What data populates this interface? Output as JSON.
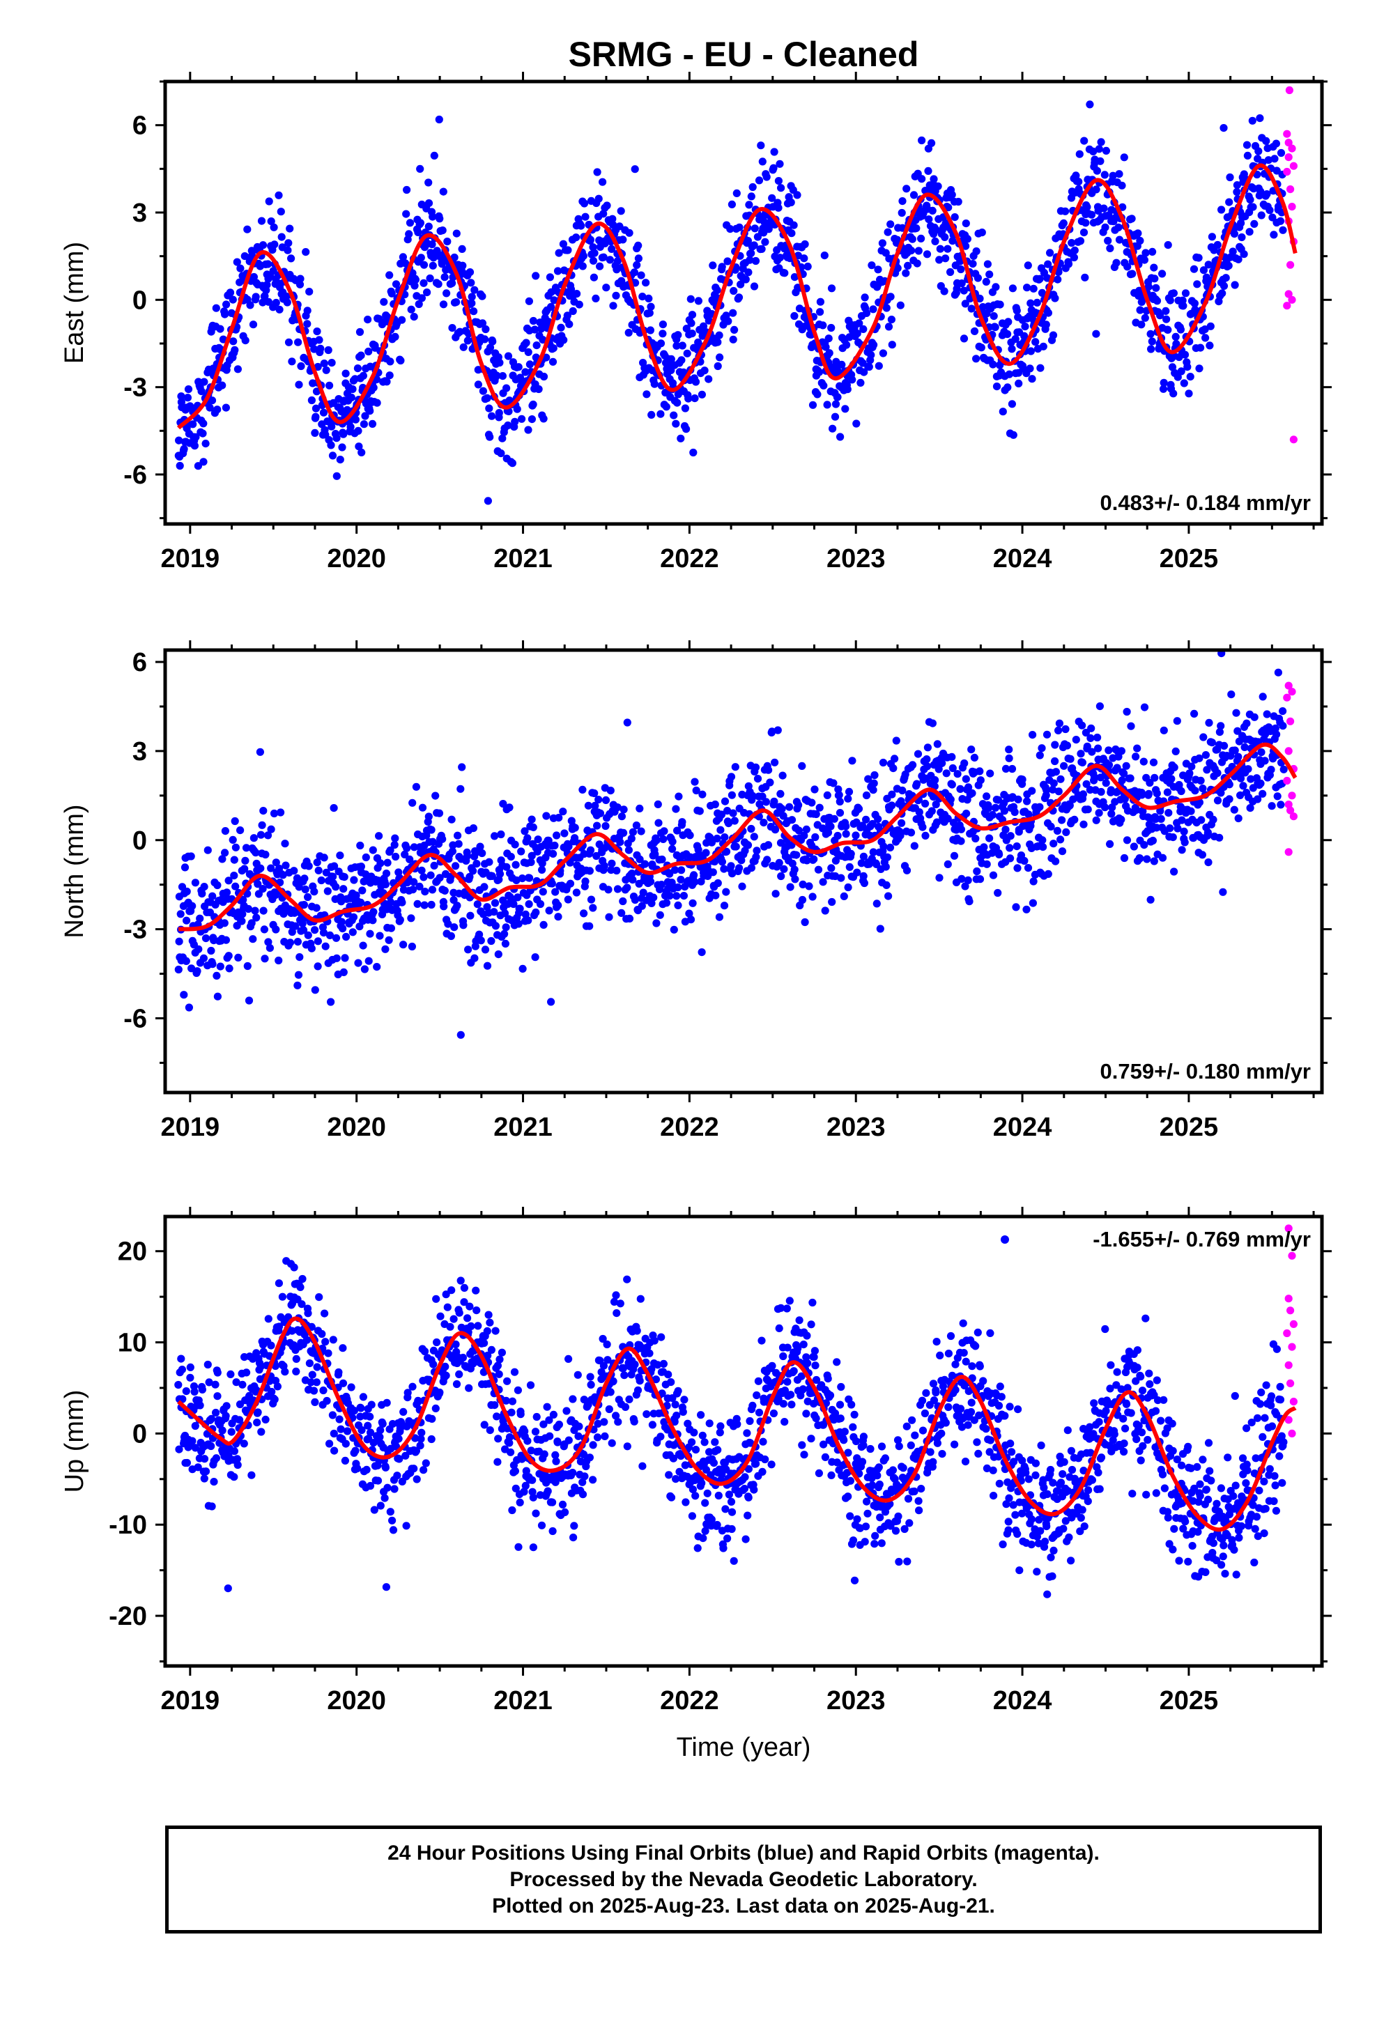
{
  "title": "SRMG  - EU - Cleaned",
  "xlabel": "Time (year)",
  "colors": {
    "final": "#0000ff",
    "rapid": "#ff00ff",
    "fit": "#ff0000",
    "axis": "#000000"
  },
  "footer": {
    "line1": "24 Hour Positions Using Final Orbits (blue) and Rapid Orbits (magenta).",
    "line2": "Processed by the Nevada Geodetic Laboratory.",
    "line3": "Plotted on 2025-Aug-23. Last data on 2025-Aug-21."
  },
  "chart_data": [
    {
      "type": "scatter",
      "component": "east",
      "ylabel": "East (mm)",
      "xlim": [
        2018.85,
        2025.8
      ],
      "ylim": [
        -7.7,
        7.5
      ],
      "xticks": [
        2019,
        2020,
        2021,
        2022,
        2023,
        2024,
        2025
      ],
      "xtick_labels": [
        "2019",
        "2020",
        "2021",
        "2022",
        "2023",
        "2024",
        "2025"
      ],
      "yticks": [
        -6,
        -3,
        0,
        3,
        6
      ],
      "ytick_labels": [
        "-6",
        "-3",
        "0",
        "3",
        "6"
      ],
      "rate_label": "0.483+/- 0.184 mm/yr",
      "legend_marker": false,
      "data_start": 2018.93,
      "data_end": 2025.57,
      "rapid_end": 2025.64,
      "fit": {
        "offset": -1.3,
        "rate": 0.483,
        "annual_amp": 2.9,
        "annual_peak": 0.45,
        "noise": 1.0,
        "seed": 11
      },
      "fit_points": [
        {
          "x": 2018.93,
          "y": -4.4
        },
        {
          "x": 2019.1,
          "y": -3.4
        },
        {
          "x": 2019.25,
          "y": -1.0
        },
        {
          "x": 2019.42,
          "y": 1.6
        },
        {
          "x": 2019.6,
          "y": 0.3
        },
        {
          "x": 2019.75,
          "y": -2.5
        },
        {
          "x": 2019.9,
          "y": -4.2
        },
        {
          "x": 2020.1,
          "y": -2.6
        },
        {
          "x": 2020.25,
          "y": 0.0
        },
        {
          "x": 2020.42,
          "y": 2.2
        },
        {
          "x": 2020.6,
          "y": 0.9
        },
        {
          "x": 2020.75,
          "y": -2.2
        },
        {
          "x": 2020.9,
          "y": -3.7
        },
        {
          "x": 2021.1,
          "y": -2.1
        },
        {
          "x": 2021.25,
          "y": 0.5
        },
        {
          "x": 2021.44,
          "y": 2.6
        },
        {
          "x": 2021.6,
          "y": 1.4
        },
        {
          "x": 2021.75,
          "y": -1.5
        },
        {
          "x": 2021.9,
          "y": -3.1
        },
        {
          "x": 2022.1,
          "y": -1.4
        },
        {
          "x": 2022.25,
          "y": 1.1
        },
        {
          "x": 2022.42,
          "y": 3.1
        },
        {
          "x": 2022.6,
          "y": 1.9
        },
        {
          "x": 2022.75,
          "y": -1.1
        },
        {
          "x": 2022.88,
          "y": -2.7
        },
        {
          "x": 2023.1,
          "y": -1.0
        },
        {
          "x": 2023.25,
          "y": 1.6
        },
        {
          "x": 2023.42,
          "y": 3.6
        },
        {
          "x": 2023.6,
          "y": 2.3
        },
        {
          "x": 2023.75,
          "y": -0.6
        },
        {
          "x": 2023.92,
          "y": -2.2
        },
        {
          "x": 2024.1,
          "y": -0.6
        },
        {
          "x": 2024.25,
          "y": 2.0
        },
        {
          "x": 2024.44,
          "y": 4.1
        },
        {
          "x": 2024.6,
          "y": 2.8
        },
        {
          "x": 2024.75,
          "y": 0.0
        },
        {
          "x": 2024.9,
          "y": -1.8
        },
        {
          "x": 2025.1,
          "y": -0.1
        },
        {
          "x": 2025.25,
          "y": 2.5
        },
        {
          "x": 2025.42,
          "y": 4.6
        },
        {
          "x": 2025.56,
          "y": 3.4
        },
        {
          "x": 2025.64,
          "y": 1.6
        }
      ],
      "rapid_points": [
        {
          "x": 2025.605,
          "y": 7.2
        },
        {
          "x": 2025.59,
          "y": 5.7
        },
        {
          "x": 2025.6,
          "y": 5.4
        },
        {
          "x": 2025.62,
          "y": 5.2
        },
        {
          "x": 2025.6,
          "y": 4.9
        },
        {
          "x": 2025.63,
          "y": 4.6
        },
        {
          "x": 2025.59,
          "y": 4.4
        },
        {
          "x": 2025.61,
          "y": 3.8
        },
        {
          "x": 2025.62,
          "y": 3.2
        },
        {
          "x": 2025.6,
          "y": 2.7
        },
        {
          "x": 2025.63,
          "y": 2.0
        },
        {
          "x": 2025.61,
          "y": 1.2
        },
        {
          "x": 2025.6,
          "y": 0.2
        },
        {
          "x": 2025.62,
          "y": 0.0
        },
        {
          "x": 2025.59,
          "y": -0.2
        },
        {
          "x": 2025.63,
          "y": -4.8
        }
      ]
    },
    {
      "type": "scatter",
      "component": "north",
      "ylabel": "North (mm)",
      "xlim": [
        2018.85,
        2025.8
      ],
      "ylim": [
        -8.5,
        6.4
      ],
      "xticks": [
        2019,
        2020,
        2021,
        2022,
        2023,
        2024,
        2025
      ],
      "xtick_labels": [
        "2019",
        "2020",
        "2021",
        "2022",
        "2023",
        "2024",
        "2025"
      ],
      "yticks": [
        -6,
        -3,
        0,
        3,
        6
      ],
      "ytick_labels": [
        "-6",
        "-3",
        "0",
        "3",
        "6"
      ],
      "rate_label": "0.759+/- 0.180 mm/yr",
      "legend_marker": false,
      "data_start": 2018.93,
      "data_end": 2025.57,
      "rapid_end": 2025.64,
      "fit": {
        "offset": -2.0,
        "rate": 0.759,
        "annual_amp": 0.9,
        "annual_peak": 0.45,
        "noise": 1.05,
        "seed": 23
      },
      "fit_points": [
        {
          "x": 2018.93,
          "y": -3.0
        },
        {
          "x": 2019.1,
          "y": -2.9
        },
        {
          "x": 2019.25,
          "y": -2.2
        },
        {
          "x": 2019.42,
          "y": -1.2
        },
        {
          "x": 2019.6,
          "y": -2.0
        },
        {
          "x": 2019.75,
          "y": -2.7
        },
        {
          "x": 2019.92,
          "y": -2.4
        },
        {
          "x": 2020.1,
          "y": -2.2
        },
        {
          "x": 2020.25,
          "y": -1.5
        },
        {
          "x": 2020.44,
          "y": -0.5
        },
        {
          "x": 2020.6,
          "y": -1.2
        },
        {
          "x": 2020.75,
          "y": -2.0
        },
        {
          "x": 2020.92,
          "y": -1.6
        },
        {
          "x": 2021.1,
          "y": -1.5
        },
        {
          "x": 2021.25,
          "y": -0.7
        },
        {
          "x": 2021.44,
          "y": 0.2
        },
        {
          "x": 2021.6,
          "y": -0.5
        },
        {
          "x": 2021.75,
          "y": -1.1
        },
        {
          "x": 2021.92,
          "y": -0.8
        },
        {
          "x": 2022.1,
          "y": -0.7
        },
        {
          "x": 2022.25,
          "y": 0.0
        },
        {
          "x": 2022.44,
          "y": 1.0
        },
        {
          "x": 2022.6,
          "y": 0.1
        },
        {
          "x": 2022.75,
          "y": -0.4
        },
        {
          "x": 2022.92,
          "y": -0.1
        },
        {
          "x": 2023.1,
          "y": 0.0
        },
        {
          "x": 2023.25,
          "y": 0.8
        },
        {
          "x": 2023.44,
          "y": 1.7
        },
        {
          "x": 2023.6,
          "y": 0.9
        },
        {
          "x": 2023.75,
          "y": 0.4
        },
        {
          "x": 2023.92,
          "y": 0.6
        },
        {
          "x": 2024.1,
          "y": 0.8
        },
        {
          "x": 2024.25,
          "y": 1.5
        },
        {
          "x": 2024.44,
          "y": 2.5
        },
        {
          "x": 2024.6,
          "y": 1.7
        },
        {
          "x": 2024.75,
          "y": 1.1
        },
        {
          "x": 2024.92,
          "y": 1.3
        },
        {
          "x": 2025.1,
          "y": 1.5
        },
        {
          "x": 2025.25,
          "y": 2.2
        },
        {
          "x": 2025.44,
          "y": 3.2
        },
        {
          "x": 2025.56,
          "y": 2.8
        },
        {
          "x": 2025.64,
          "y": 2.1
        }
      ],
      "rapid_points": [
        {
          "x": 2025.6,
          "y": 5.2
        },
        {
          "x": 2025.62,
          "y": 5.0
        },
        {
          "x": 2025.59,
          "y": 4.8
        },
        {
          "x": 2025.61,
          "y": 4.0
        },
        {
          "x": 2025.6,
          "y": 3.0
        },
        {
          "x": 2025.63,
          "y": 2.4
        },
        {
          "x": 2025.59,
          "y": 2.0
        },
        {
          "x": 2025.62,
          "y": 1.5
        },
        {
          "x": 2025.6,
          "y": 1.2
        },
        {
          "x": 2025.61,
          "y": 1.0
        },
        {
          "x": 2025.63,
          "y": 0.8
        },
        {
          "x": 2025.6,
          "y": -0.4
        }
      ]
    },
    {
      "type": "scatter",
      "component": "up",
      "ylabel": "Up (mm)",
      "xlim": [
        2018.85,
        2025.8
      ],
      "ylim": [
        -25.5,
        23.8
      ],
      "xticks": [
        2019,
        2020,
        2021,
        2022,
        2023,
        2024,
        2025
      ],
      "xtick_labels": [
        "2019",
        "2020",
        "2021",
        "2022",
        "2023",
        "2024",
        "2025"
      ],
      "yticks": [
        -20,
        -10,
        0,
        10,
        20
      ],
      "ytick_labels": [
        "-20",
        "-10",
        "0",
        "10",
        "20"
      ],
      "rate_label": "-1.655+/- 0.769 mm/yr",
      "legend_marker": true,
      "data_start": 2018.93,
      "data_end": 2025.57,
      "rapid_end": 2025.64,
      "fit": {
        "offset": 4.5,
        "rate": -1.655,
        "annual_amp": 8.5,
        "annual_peak": 0.63,
        "noise": 3.4,
        "seed": 37
      },
      "fit_points": [
        {
          "x": 2018.93,
          "y": 3.5
        },
        {
          "x": 2019.05,
          "y": 1.5
        },
        {
          "x": 2019.18,
          "y": -0.5
        },
        {
          "x": 2019.26,
          "y": -0.8
        },
        {
          "x": 2019.4,
          "y": 3.5
        },
        {
          "x": 2019.55,
          "y": 10.5
        },
        {
          "x": 2019.64,
          "y": 12.6
        },
        {
          "x": 2019.75,
          "y": 10.0
        },
        {
          "x": 2019.9,
          "y": 3.5
        },
        {
          "x": 2020.05,
          "y": -1.5
        },
        {
          "x": 2020.2,
          "y": -2.5
        },
        {
          "x": 2020.35,
          "y": 0.5
        },
        {
          "x": 2020.5,
          "y": 7.5
        },
        {
          "x": 2020.62,
          "y": 11.0
        },
        {
          "x": 2020.75,
          "y": 8.5
        },
        {
          "x": 2020.9,
          "y": 2.0
        },
        {
          "x": 2021.05,
          "y": -3.0
        },
        {
          "x": 2021.2,
          "y": -4.0
        },
        {
          "x": 2021.35,
          "y": -1.5
        },
        {
          "x": 2021.5,
          "y": 5.5
        },
        {
          "x": 2021.63,
          "y": 9.3
        },
        {
          "x": 2021.75,
          "y": 6.5
        },
        {
          "x": 2021.9,
          "y": 0.5
        },
        {
          "x": 2022.05,
          "y": -4.0
        },
        {
          "x": 2022.2,
          "y": -5.5
        },
        {
          "x": 2022.35,
          "y": -3.0
        },
        {
          "x": 2022.5,
          "y": 4.0
        },
        {
          "x": 2022.62,
          "y": 7.8
        },
        {
          "x": 2022.75,
          "y": 5.0
        },
        {
          "x": 2022.9,
          "y": -1.5
        },
        {
          "x": 2023.05,
          "y": -6.0
        },
        {
          "x": 2023.2,
          "y": -7.3
        },
        {
          "x": 2023.35,
          "y": -4.5
        },
        {
          "x": 2023.5,
          "y": 2.5
        },
        {
          "x": 2023.63,
          "y": 6.2
        },
        {
          "x": 2023.75,
          "y": 3.5
        },
        {
          "x": 2023.9,
          "y": -3.0
        },
        {
          "x": 2024.05,
          "y": -7.5
        },
        {
          "x": 2024.2,
          "y": -8.8
        },
        {
          "x": 2024.35,
          "y": -6.0
        },
        {
          "x": 2024.5,
          "y": 0.5
        },
        {
          "x": 2024.63,
          "y": 4.5
        },
        {
          "x": 2024.75,
          "y": 2.0
        },
        {
          "x": 2024.9,
          "y": -4.5
        },
        {
          "x": 2025.05,
          "y": -9.0
        },
        {
          "x": 2025.2,
          "y": -10.5
        },
        {
          "x": 2025.35,
          "y": -7.5
        },
        {
          "x": 2025.5,
          "y": -1.0
        },
        {
          "x": 2025.58,
          "y": 2.0
        },
        {
          "x": 2025.64,
          "y": 2.8
        }
      ],
      "rapid_points": [
        {
          "x": 2025.6,
          "y": 22.5
        },
        {
          "x": 2025.62,
          "y": 19.5
        },
        {
          "x": 2025.6,
          "y": 14.8
        },
        {
          "x": 2025.61,
          "y": 13.5
        },
        {
          "x": 2025.63,
          "y": 12.0
        },
        {
          "x": 2025.59,
          "y": 11.0
        },
        {
          "x": 2025.62,
          "y": 9.5
        },
        {
          "x": 2025.6,
          "y": 7.5
        },
        {
          "x": 2025.61,
          "y": 5.5
        },
        {
          "x": 2025.63,
          "y": 3.5
        },
        {
          "x": 2025.6,
          "y": 1.5
        },
        {
          "x": 2025.62,
          "y": 0.0
        }
      ]
    }
  ]
}
